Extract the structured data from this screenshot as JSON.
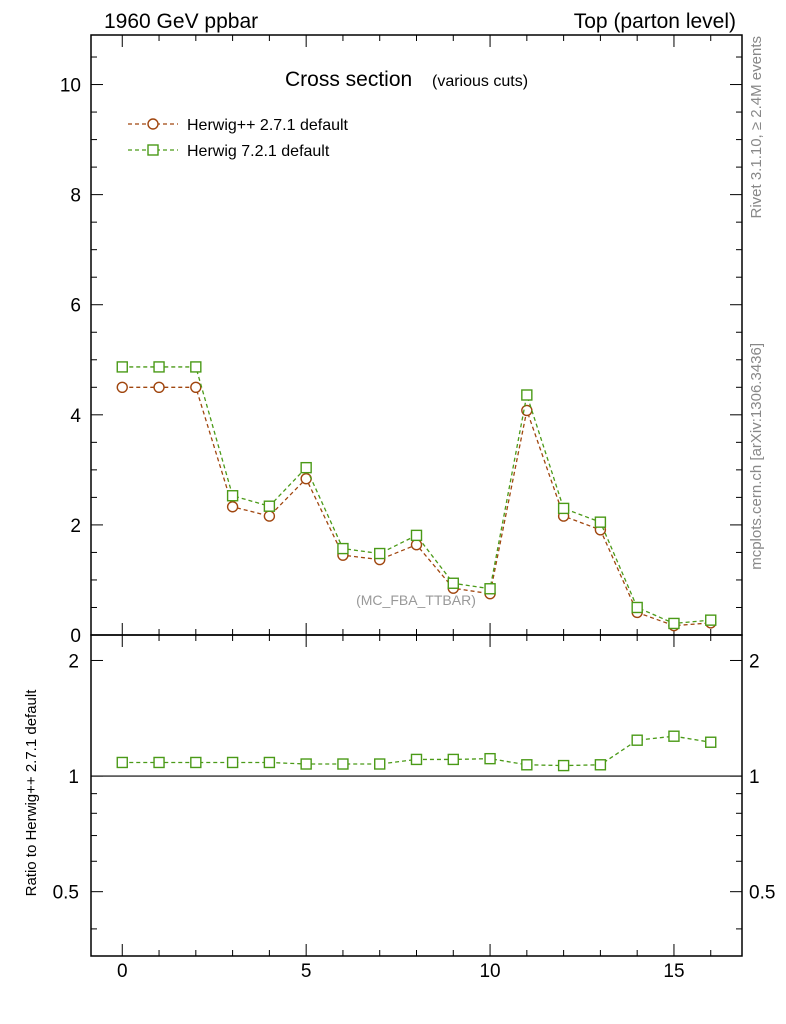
{
  "header": {
    "left": "1960 GeV ppbar",
    "right": "Top (parton level)"
  },
  "side_labels": {
    "rivet": "Rivet 3.1.10, ≥ 2.4M events",
    "mcplots": "mcplots.cern.ch [arXiv:1306.3436]"
  },
  "chart_data": [
    {
      "type": "line",
      "panel": "main",
      "title": "Cross section",
      "subtitle": "(various cuts)",
      "watermark": "(MC_FBA_TTBAR)",
      "xlabel": "",
      "ylabel": "",
      "xlim": [
        -0.85,
        16.85
      ],
      "ylim": [
        0,
        10.9
      ],
      "yticks": [
        0,
        2,
        4,
        6,
        8,
        10
      ],
      "ytick_labels": [
        "0",
        "2",
        "4",
        "6",
        "8",
        "10"
      ],
      "legend_position": "top-left",
      "x": [
        0,
        1,
        2,
        3,
        4,
        5,
        6,
        7,
        8,
        9,
        10,
        11,
        12,
        13,
        14,
        15,
        16
      ],
      "series": [
        {
          "name": "Herwig++ 2.7.1 default",
          "color": "#a0460f",
          "marker": "circle",
          "values": [
            4.5,
            4.5,
            4.5,
            2.33,
            2.16,
            2.84,
            1.45,
            1.37,
            1.64,
            0.85,
            0.75,
            4.08,
            2.16,
            1.91,
            0.41,
            0.17,
            0.22
          ]
        },
        {
          "name": "Herwig 7.2.1 default",
          "color": "#4a9a17",
          "marker": "square",
          "values": [
            4.87,
            4.87,
            4.87,
            2.53,
            2.34,
            3.04,
            1.57,
            1.48,
            1.81,
            0.94,
            0.84,
            4.36,
            2.3,
            2.05,
            0.5,
            0.21,
            0.27
          ]
        }
      ]
    },
    {
      "type": "line",
      "panel": "ratio",
      "xlabel": "",
      "ylabel": "Ratio to Herwig++ 2.7.1 default",
      "xlim": [
        -0.85,
        16.85
      ],
      "ylim": [
        0.34,
        2.33
      ],
      "yticks": [
        0.5,
        1,
        2
      ],
      "ytick_labels": [
        "0.5",
        "1",
        "2"
      ],
      "xticks": [
        0,
        5,
        10,
        15
      ],
      "xtick_labels": [
        "0",
        "5",
        "10",
        "15"
      ],
      "reference": {
        "value": 1,
        "color": "#a0460f"
      },
      "x": [
        0,
        1,
        2,
        3,
        4,
        5,
        6,
        7,
        8,
        9,
        10,
        11,
        12,
        13,
        14,
        15,
        16
      ],
      "series": [
        {
          "name": "Herwig 7.2.1 default",
          "color": "#4a9a17",
          "marker": "square",
          "values": [
            1.085,
            1.085,
            1.085,
            1.085,
            1.085,
            1.075,
            1.075,
            1.075,
            1.105,
            1.105,
            1.11,
            1.07,
            1.065,
            1.07,
            1.24,
            1.27,
            1.225
          ]
        }
      ]
    }
  ]
}
